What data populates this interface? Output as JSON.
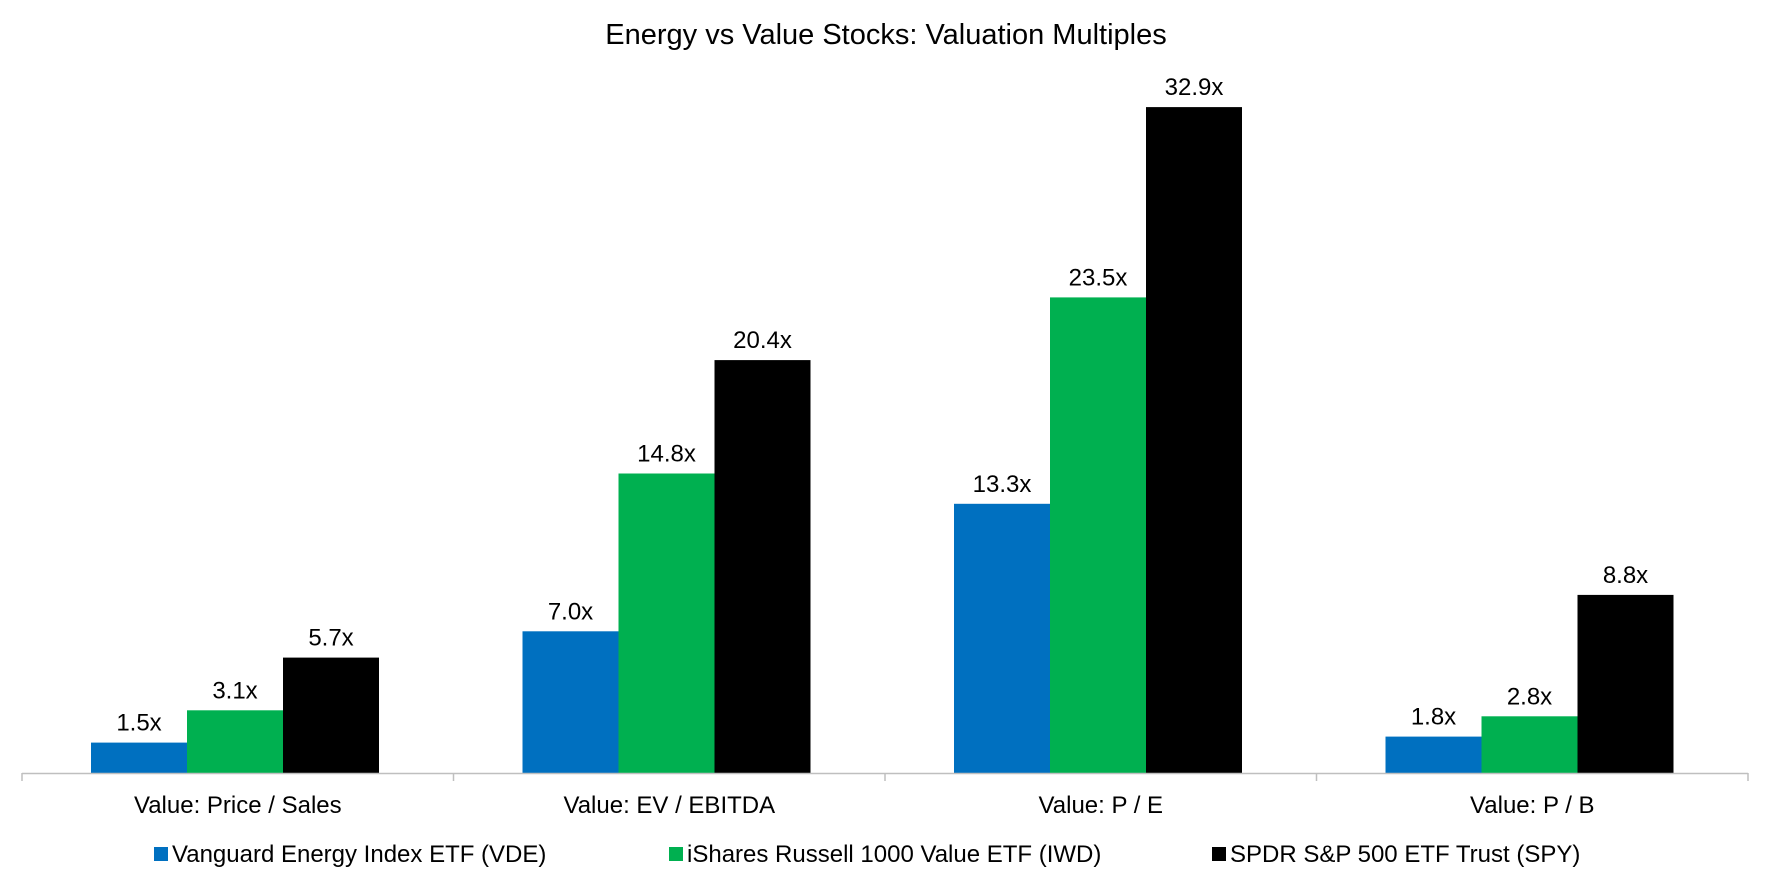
{
  "chart_data": {
    "type": "bar",
    "title": "Energy vs Value Stocks: Valuation Multiples",
    "xlabel": "",
    "ylabel": "",
    "ylim": [
      0,
      33.5
    ],
    "grid": false,
    "legend_position": "bottom",
    "value_suffix": "x",
    "categories": [
      "Value: Price / Sales",
      "Value: EV / EBITDA",
      "Value: P / E",
      "Value: P / B"
    ],
    "series": [
      {
        "name": "Vanguard Energy Index ETF (VDE)",
        "color": "#0070C0",
        "values": [
          1.5,
          7.0,
          13.3,
          1.8
        ],
        "labels": [
          "1.5x",
          "7.0x",
          "13.3x",
          "1.8x"
        ]
      },
      {
        "name": "iShares Russell 1000 Value ETF (IWD)",
        "color": "#00B050",
        "values": [
          3.1,
          14.8,
          23.5,
          2.8
        ],
        "labels": [
          "3.1x",
          "14.8x",
          "23.5x",
          "2.8x"
        ]
      },
      {
        "name": "SPDR S&P 500 ETF Trust (SPY)",
        "color": "#000000",
        "values": [
          5.7,
          20.4,
          32.9,
          8.8
        ],
        "labels": [
          "5.7x",
          "20.4x",
          "32.9x",
          "8.8x"
        ]
      }
    ],
    "axis_color": "#BFBFBF"
  }
}
